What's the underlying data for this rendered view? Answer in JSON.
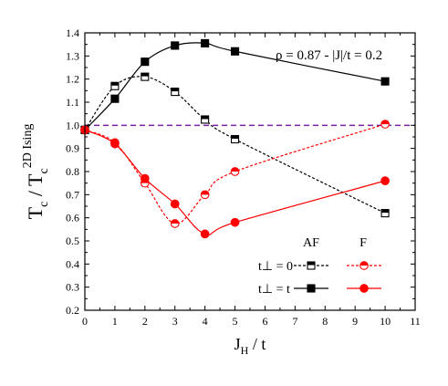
{
  "chart_data": {
    "type": "line",
    "xlabel_main": "J",
    "xlabel_sub": "H",
    "xlabel_tail": " / t",
    "ylabel_main": "T",
    "ylabel_sub1": "c",
    "ylabel_mid": " / T",
    "ylabel_sub2": "c",
    "ylabel_sup": "2D Ising",
    "annotation": "ρ = 0.87 - |J|/t = 0.2",
    "legend_col_af": "AF",
    "legend_col_f": "F",
    "legend_row1": "t⊥ = 0",
    "legend_row2": "t⊥ = t",
    "xlim": [
      0,
      11
    ],
    "ylim": [
      0.2,
      1.4
    ],
    "x_ticks": [
      0,
      1,
      2,
      3,
      4,
      5,
      6,
      7,
      8,
      9,
      10,
      11
    ],
    "y_ticks": [
      "0.2",
      "0.3",
      "0.4",
      "0.5",
      "0.6",
      "0.7",
      "0.8",
      "0.9",
      "1.0",
      "1.1",
      "1.2",
      "1.3",
      "1.4"
    ],
    "reference_line": 1.0,
    "colors": {
      "af": "#000000",
      "f": "#ff0000",
      "reference": "#7b1fa2"
    },
    "series": [
      {
        "x": [
          0,
          1,
          2,
          3,
          4,
          5,
          10
        ],
        "y": [
          0.98,
          1.17,
          1.21,
          1.145,
          1.025,
          0.94,
          0.62
        ],
        "marker": "half-square",
        "linestyle": "dashed",
        "colorKey": "af"
      },
      {
        "x": [
          0,
          1,
          2,
          3,
          4,
          5,
          10
        ],
        "y": [
          0.98,
          1.115,
          1.275,
          1.345,
          1.355,
          1.32,
          1.19
        ],
        "marker": "square",
        "linestyle": "solid",
        "colorKey": "af"
      },
      {
        "x": [
          0,
          1,
          2,
          3,
          4,
          5,
          10
        ],
        "y": [
          0.98,
          0.925,
          0.75,
          0.575,
          0.7,
          0.8,
          1.005
        ],
        "marker": "half-circle",
        "linestyle": "dashed",
        "colorKey": "f"
      },
      {
        "x": [
          0,
          1,
          2,
          3,
          4,
          5,
          10
        ],
        "y": [
          0.98,
          0.92,
          0.77,
          0.66,
          0.53,
          0.58,
          0.76
        ],
        "marker": "circle",
        "linestyle": "solid",
        "colorKey": "f"
      }
    ]
  }
}
